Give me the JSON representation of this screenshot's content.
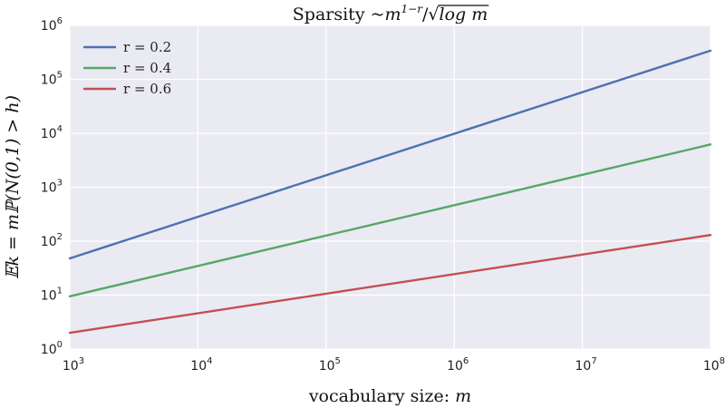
{
  "chart_data": {
    "type": "line",
    "title": "Sparsity  ~m^{1-r}/√log m",
    "title_parts": {
      "prefix": "Sparsity  ~",
      "base": "m",
      "exponent": "1−r",
      "slash": "/",
      "root": "√",
      "under_root": "log m"
    },
    "xlabel": "vocabulary size: m",
    "xlabel_parts": {
      "text": "vocabulary size: ",
      "var": "m"
    },
    "ylabel": "𝔼k = mℙ(N(0,1) > h)",
    "xscale": "log",
    "yscale": "log",
    "xlim": [
      1000,
      100000000
    ],
    "ylim": [
      1,
      1000000
    ],
    "x_ticks": [
      {
        "base": "10",
        "exp": "3",
        "value": 1000
      },
      {
        "base": "10",
        "exp": "4",
        "value": 10000
      },
      {
        "base": "10",
        "exp": "5",
        "value": 100000
      },
      {
        "base": "10",
        "exp": "6",
        "value": 1000000
      },
      {
        "base": "10",
        "exp": "7",
        "value": 10000000
      },
      {
        "base": "10",
        "exp": "8",
        "value": 100000000
      }
    ],
    "y_ticks": [
      {
        "base": "10",
        "exp": "0",
        "value": 1
      },
      {
        "base": "10",
        "exp": "1",
        "value": 10
      },
      {
        "base": "10",
        "exp": "2",
        "value": 100
      },
      {
        "base": "10",
        "exp": "3",
        "value": 1000
      },
      {
        "base": "10",
        "exp": "4",
        "value": 10000
      },
      {
        "base": "10",
        "exp": "5",
        "value": 100000
      },
      {
        "base": "10",
        "exp": "6",
        "value": 1000000
      }
    ],
    "grid": true,
    "legend_position": "top-left",
    "background_color": "#eaeaf2",
    "grid_color": "#ffffff",
    "series": [
      {
        "name": "r = 0.2",
        "color": "#4c72b0",
        "x": [
          1000,
          100000000
        ],
        "y": [
          48,
          340000
        ]
      },
      {
        "name": "r = 0.4",
        "color": "#55a868",
        "x": [
          1000,
          100000000
        ],
        "y": [
          9.5,
          6200
        ]
      },
      {
        "name": "r = 0.6",
        "color": "#c44e52",
        "x": [
          1000,
          100000000
        ],
        "y": [
          2.0,
          130
        ]
      }
    ]
  }
}
